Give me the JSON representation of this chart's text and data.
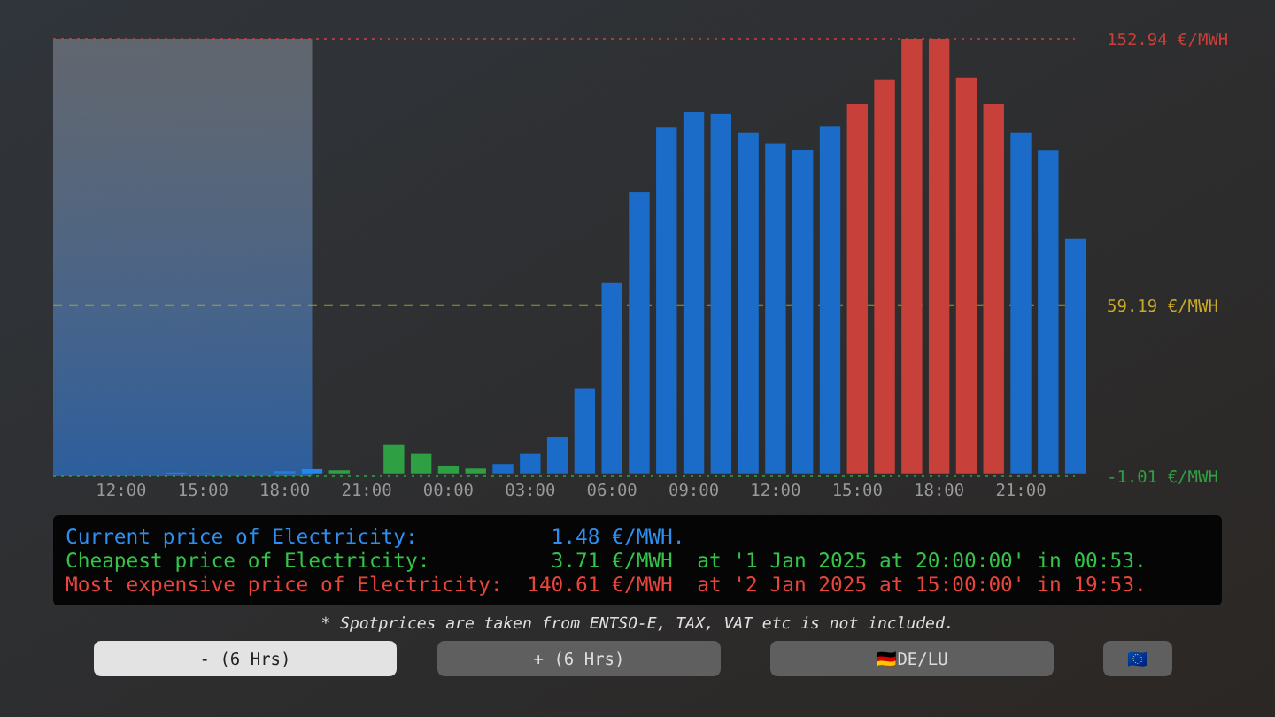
{
  "chart_data": {
    "type": "bar",
    "x": [
      "2025-01-01T14:00",
      "2025-01-01T15:00",
      "2025-01-01T16:00",
      "2025-01-01T17:00",
      "2025-01-01T18:00",
      "2025-01-01T19:00",
      "2025-01-01T20:00",
      "2025-01-01T21:00",
      "2025-01-01T22:00",
      "2025-01-01T23:00",
      "2025-01-02T00:00",
      "2025-01-02T01:00",
      "2025-01-02T02:00",
      "2025-01-02T03:00",
      "2025-01-02T04:00",
      "2025-01-02T05:00",
      "2025-01-02T06:00",
      "2025-01-02T07:00",
      "2025-01-02T08:00",
      "2025-01-02T09:00",
      "2025-01-02T10:00",
      "2025-01-02T11:00",
      "2025-01-02T12:00",
      "2025-01-02T13:00",
      "2025-01-02T14:00",
      "2025-01-02T15:00",
      "2025-01-02T16:00",
      "2025-01-02T17:00",
      "2025-01-02T18:00",
      "2025-01-02T19:00",
      "2025-01-02T20:00",
      "2025-01-02T21:00",
      "2025-01-02T22:00",
      "2025-01-02T23:00"
    ],
    "values": [
      0.3,
      0,
      0,
      0,
      0.8,
      1.5,
      1.1,
      null,
      10,
      6.9,
      2.5,
      1.7,
      3.3,
      6.9,
      12.7,
      30,
      67,
      99,
      121.7,
      127.3,
      126.5,
      120,
      116,
      114,
      122.3,
      130,
      138.7,
      152.94,
      152.94,
      139.3,
      130,
      120,
      113.6,
      82.6
    ],
    "colors": [
      "#1e7fe0",
      "#1e7fe0",
      "#1e7fe0",
      "#1e7fe0",
      "#1e7fe0",
      "#1e88f0",
      "#2ea043",
      null,
      "#2ea043",
      "#2ea043",
      "#2ea043",
      "#2ea043",
      "#1a6cc8",
      "#1a6cc8",
      "#1a6cc8",
      "#1a6cc8",
      "#1a6cc8",
      "#1a6cc8",
      "#1a6cc8",
      "#1a6cc8",
      "#1a6cc8",
      "#1a6cc8",
      "#1a6cc8",
      "#1a6cc8",
      "#1a6cc8",
      "#c8403a",
      "#c8403a",
      "#c8403a",
      "#c8403a",
      "#c8403a",
      "#c8403a",
      "#1a6cc8",
      "#1a6cc8",
      "#1a6cc8"
    ],
    "xlim": [
      "2025-01-01T09:30",
      "2025-01-02T23:30"
    ],
    "xticks": [
      {
        "value": "2025-01-01T12:00",
        "label": "12:00"
      },
      {
        "value": "2025-01-01T15:00",
        "label": "15:00"
      },
      {
        "value": "2025-01-01T18:00",
        "label": "18:00"
      },
      {
        "value": "2025-01-01T21:00",
        "label": "21:00"
      },
      {
        "value": "2025-01-02T00:00",
        "label": "00:00"
      },
      {
        "value": "2025-01-02T03:00",
        "label": "03:00"
      },
      {
        "value": "2025-01-02T06:00",
        "label": "06:00"
      },
      {
        "value": "2025-01-02T09:00",
        "label": "09:00"
      },
      {
        "value": "2025-01-02T12:00",
        "label": "12:00"
      },
      {
        "value": "2025-01-02T15:00",
        "label": "15:00"
      },
      {
        "value": "2025-01-02T18:00",
        "label": "18:00"
      },
      {
        "value": "2025-01-02T21:00",
        "label": "21:00"
      }
    ],
    "ylim": [
      -1.01,
      152.94
    ],
    "yticks": [
      {
        "value": -1.01,
        "label": "-1.01 €/MWH"
      },
      {
        "value": 59.19,
        "label": "59.19 €/MWH"
      },
      {
        "value": 152.94,
        "label": "152.94 €/MWH"
      }
    ],
    "ref_lines": [
      {
        "axis": "y",
        "value": 152.94,
        "color": "#c8403a",
        "line_style": "dotted"
      },
      {
        "axis": "y",
        "value": 59.19,
        "color": "#c9a927",
        "line_style": "dashed"
      },
      {
        "axis": "y",
        "value": -1.01,
        "color": "#2ea043",
        "line_style": "dotted"
      }
    ],
    "bands": [
      {
        "axis": "x",
        "from": "2025-01-01T09:30",
        "to": "2025-01-01T19:00",
        "color": "#2c66b0"
      }
    ],
    "annotations": [
      "Current price of Electricity:           1.48 €/MWH.",
      "Cheapest price of Electricity:          3.71 €/MWH  at '1 Jan 2025 at 20:00:00' in 00:53.",
      "Most expensive price of Electricity:  140.61 €/MWH  at '2 Jan 2025 at 15:00:00' in 19:53.",
      "* Spotprices are taken from ENTSO-E, TAX, VAT etc is not included.",
      "- (6 Hrs)",
      "+ (6 Hrs)",
      "🇩🇪DE/LU",
      "🇪🇺"
    ]
  }
}
